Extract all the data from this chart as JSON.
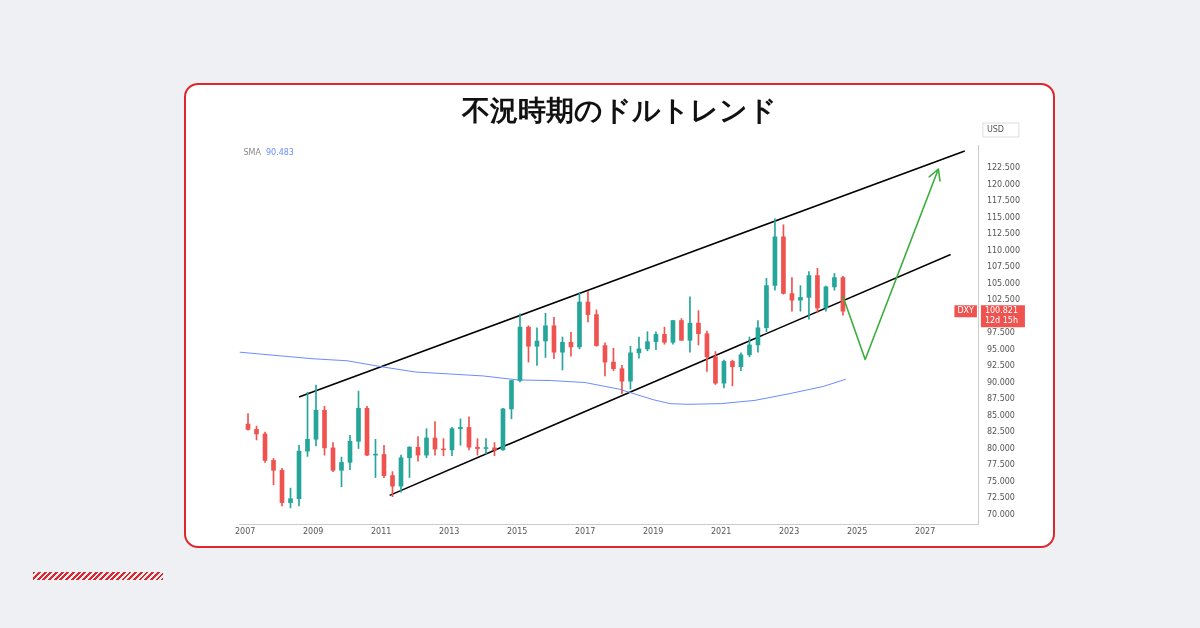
{
  "chart_data": {
    "type": "candlestick",
    "title": "不況時期のドルトレンド",
    "ylabel": "USD",
    "xlim": [
      "2006-11",
      "2028-08"
    ],
    "ylim": [
      68.5,
      126
    ],
    "xticks": [
      "2007",
      "2009",
      "2011",
      "2013",
      "2015",
      "2017",
      "2019",
      "2021",
      "2023",
      "2025",
      "2027"
    ],
    "yticks": [
      {
        "value": 70,
        "label": "70.000"
      },
      {
        "value": 72.5,
        "label": "72.500"
      },
      {
        "value": 75,
        "label": "75.000"
      },
      {
        "value": 77.5,
        "label": "77.500"
      },
      {
        "value": 80,
        "label": "80.000"
      },
      {
        "value": 82.5,
        "label": "82.500"
      },
      {
        "value": 85,
        "label": "85.000"
      },
      {
        "value": 87.5,
        "label": "87.500"
      },
      {
        "value": 90,
        "label": "90.000"
      },
      {
        "value": 92.5,
        "label": "92.500"
      },
      {
        "value": 95,
        "label": "95.000"
      },
      {
        "value": 97.5,
        "label": "97.500"
      },
      {
        "value": 102.5,
        "label": "102.500"
      },
      {
        "value": 105,
        "label": "105.000"
      },
      {
        "value": 107.5,
        "label": "107.500"
      },
      {
        "value": 110,
        "label": "110.000"
      },
      {
        "value": 112.5,
        "label": "112.500"
      },
      {
        "value": 115,
        "label": "115.000"
      },
      {
        "value": 117.5,
        "label": "117.500"
      },
      {
        "value": 120,
        "label": "120.000"
      },
      {
        "value": 122.5,
        "label": "122.500"
      }
    ],
    "legend": "top left",
    "annotations": [
      "90.483",
      "DXY",
      "100.821",
      "12d 15h"
    ],
    "series": [
      {
        "x": [
          "2007-02",
          "2007-05",
          "2007-08",
          "2007-11",
          "2008-02",
          "2008-05",
          "2008-08",
          "2008-11",
          "2009-02",
          "2009-05",
          "2009-08",
          "2009-11",
          "2010-02",
          "2010-05",
          "2010-08",
          "2010-11",
          "2011-02",
          "2011-05",
          "2011-08",
          "2011-11",
          "2012-02",
          "2012-05",
          "2012-08",
          "2012-11",
          "2013-02",
          "2013-05",
          "2013-08",
          "2013-11",
          "2014-02",
          "2014-05",
          "2014-08",
          "2014-11",
          "2015-02",
          "2015-05",
          "2015-08",
          "2015-11",
          "2016-02",
          "2016-05",
          "2016-08",
          "2016-11",
          "2017-02",
          "2017-05",
          "2017-08",
          "2017-11",
          "2018-02",
          "2018-05",
          "2018-08",
          "2018-11",
          "2019-02",
          "2019-05",
          "2019-08",
          "2019-11",
          "2020-02",
          "2020-05",
          "2020-08",
          "2020-11",
          "2021-02",
          "2021-05",
          "2021-08",
          "2021-11",
          "2022-02",
          "2022-05",
          "2022-08",
          "2022-11",
          "2023-02",
          "2023-05",
          "2023-08",
          "2023-11",
          "2024-02",
          "2024-05",
          "2024-08"
        ],
        "ohlc": [
          [
            83.7,
            85.3,
            82.8,
            82.9
          ],
          [
            82.9,
            83.4,
            81.3,
            82.2
          ],
          [
            82.2,
            82.5,
            77.9,
            78.2
          ],
          [
            78.2,
            78.5,
            74.5,
            76.7
          ],
          [
            76.7,
            77.0,
            71.3,
            71.8
          ],
          [
            71.8,
            74.0,
            71.0,
            72.4
          ],
          [
            72.4,
            80.5,
            71.3,
            79.6
          ],
          [
            79.6,
            88.5,
            78.8,
            81.4
          ],
          [
            81.4,
            89.6,
            80.4,
            85.8
          ],
          [
            85.8,
            86.4,
            79.0,
            80.1
          ],
          [
            80.1,
            80.9,
            76.5,
            76.7
          ],
          [
            76.7,
            78.7,
            74.2,
            77.9
          ],
          [
            77.9,
            82.0,
            76.8,
            81.1
          ],
          [
            81.1,
            88.7,
            80.0,
            86.1
          ],
          [
            86.1,
            86.4,
            78.9,
            79.0
          ],
          [
            79.0,
            81.4,
            75.6,
            79.1
          ],
          [
            79.1,
            80.5,
            75.6,
            75.9
          ],
          [
            75.9,
            76.5,
            72.7,
            74.3
          ],
          [
            74.3,
            79.0,
            73.4,
            78.6
          ],
          [
            78.6,
            80.3,
            75.6,
            80.2
          ],
          [
            80.2,
            81.8,
            78.1,
            79.0
          ],
          [
            79.0,
            83.0,
            78.6,
            81.6
          ],
          [
            81.6,
            84.1,
            79.0,
            79.9
          ],
          [
            79.9,
            81.5,
            78.9,
            79.8
          ],
          [
            79.8,
            83.2,
            78.9,
            83.0
          ],
          [
            83.0,
            84.5,
            80.5,
            83.2
          ],
          [
            83.2,
            84.8,
            79.8,
            80.2
          ],
          [
            80.2,
            81.5,
            79.0,
            80.0
          ],
          [
            80.0,
            81.5,
            79.2,
            80.1
          ],
          [
            80.1,
            80.9,
            78.9,
            79.8
          ],
          [
            79.8,
            86.1,
            79.7,
            86.0
          ],
          [
            86.0,
            90.3,
            84.5,
            90.3
          ],
          [
            90.3,
            100.4,
            90.1,
            98.4
          ],
          [
            98.4,
            98.6,
            93.1,
            95.5
          ],
          [
            95.5,
            98.3,
            92.6,
            96.3
          ],
          [
            96.3,
            100.5,
            93.8,
            98.6
          ],
          [
            98.6,
            99.9,
            93.6,
            94.6
          ],
          [
            94.6,
            96.9,
            91.9,
            96.1
          ],
          [
            96.1,
            97.6,
            94.0,
            95.4
          ],
          [
            95.4,
            103.6,
            95.1,
            102.2
          ],
          [
            102.2,
            103.8,
            99.2,
            100.3
          ],
          [
            100.3,
            101.0,
            95.5,
            95.6
          ],
          [
            95.6,
            96.0,
            91.0,
            93.1
          ],
          [
            93.1,
            95.2,
            91.8,
            92.1
          ],
          [
            92.1,
            92.6,
            88.3,
            90.2
          ],
          [
            90.2,
            95.5,
            89.0,
            94.5
          ],
          [
            94.5,
            96.9,
            93.7,
            95.1
          ],
          [
            95.1,
            97.7,
            94.8,
            96.2
          ],
          [
            96.2,
            97.7,
            95.0,
            97.3
          ],
          [
            97.3,
            98.4,
            95.8,
            96.1
          ],
          [
            96.1,
            99.4,
            95.8,
            99.4
          ],
          [
            99.4,
            99.7,
            96.4,
            96.4
          ],
          [
            96.4,
            103.0,
            94.6,
            99.0
          ],
          [
            99.0,
            100.9,
            95.7,
            97.4
          ],
          [
            97.4,
            97.8,
            91.7,
            93.9
          ],
          [
            93.9,
            94.7,
            89.7,
            89.9
          ],
          [
            89.9,
            93.4,
            89.2,
            93.2
          ],
          [
            93.2,
            93.4,
            89.5,
            92.4
          ],
          [
            92.4,
            94.5,
            91.8,
            94.2
          ],
          [
            94.2,
            96.9,
            93.9,
            95.7
          ],
          [
            95.7,
            99.4,
            94.6,
            98.3
          ],
          [
            98.3,
            105.8,
            97.7,
            104.7
          ],
          [
            104.7,
            114.8,
            104.0,
            112.1
          ],
          [
            112.1,
            113.9,
            103.4,
            103.5
          ],
          [
            103.5,
            105.9,
            100.8,
            102.5
          ],
          [
            102.5,
            104.7,
            100.8,
            102.9
          ],
          [
            102.9,
            106.8,
            99.6,
            106.2
          ],
          [
            106.2,
            107.3,
            100.6,
            101.3
          ],
          [
            101.3,
            104.6,
            100.8,
            104.5
          ],
          [
            104.5,
            106.5,
            104.0,
            105.9
          ],
          [
            105.9,
            106.1,
            100.2,
            100.8
          ]
        ],
        "colors": [
          "#ef5350",
          "#ef5350",
          "#ef5350",
          "#ef5350",
          "#ef5350",
          "#26a69a",
          "#26a69a",
          "#26a69a",
          "#26a69a",
          "#ef5350",
          "#ef5350",
          "#26a69a",
          "#26a69a",
          "#26a69a",
          "#ef5350",
          "#26a69a",
          "#ef5350",
          "#ef5350",
          "#26a69a",
          "#26a69a",
          "#ef5350",
          "#26a69a",
          "#ef5350",
          "#ef5350",
          "#26a69a",
          "#26a69a",
          "#ef5350",
          "#ef5350",
          "#26a69a",
          "#ef5350",
          "#26a69a",
          "#26a69a",
          "#26a69a",
          "#ef5350",
          "#26a69a",
          "#26a69a",
          "#ef5350",
          "#26a69a",
          "#ef5350",
          "#26a69a",
          "#ef5350",
          "#ef5350",
          "#ef5350",
          "#ef5350",
          "#ef5350",
          "#26a69a",
          "#26a69a",
          "#26a69a",
          "#26a69a",
          "#ef5350",
          "#26a69a",
          "#ef5350",
          "#26a69a",
          "#ef5350",
          "#ef5350",
          "#ef5350",
          "#26a69a",
          "#ef5350",
          "#26a69a",
          "#26a69a",
          "#26a69a",
          "#26a69a",
          "#26a69a",
          "#ef5350",
          "#ef5350",
          "#26a69a",
          "#26a69a",
          "#ef5350",
          "#26a69a",
          "#26a69a",
          "#ef5350"
        ]
      },
      {
        "type": "line",
        "name": "SMA",
        "color": "#6b8cff",
        "x": [
          "2006-11",
          "2009-01",
          "2010-01",
          "2011-01",
          "2012-01",
          "2013-01",
          "2014-01",
          "2015-01",
          "2016-01",
          "2017-01",
          "2018-01",
          "2019-01",
          "2019-07",
          "2020-01",
          "2021-01",
          "2022-01",
          "2023-01",
          "2024-01",
          "2024-09"
        ],
        "values": [
          94.6,
          93.6,
          93.3,
          92.4,
          91.6,
          91.3,
          91.0,
          90.4,
          90.3,
          90.0,
          89.0,
          87.4,
          86.8,
          86.7,
          86.8,
          87.3,
          88.3,
          89.4,
          90.5
        ]
      },
      {
        "type": "line",
        "color": "#000000",
        "x": [
          "2008-08",
          "2028-03"
        ],
        "values": [
          87.8,
          125.1
        ]
      },
      {
        "type": "line",
        "color": "#000000",
        "x": [
          "2011-04",
          "2027-10"
        ],
        "values": [
          72.9,
          109.4
        ]
      }
    ]
  }
}
